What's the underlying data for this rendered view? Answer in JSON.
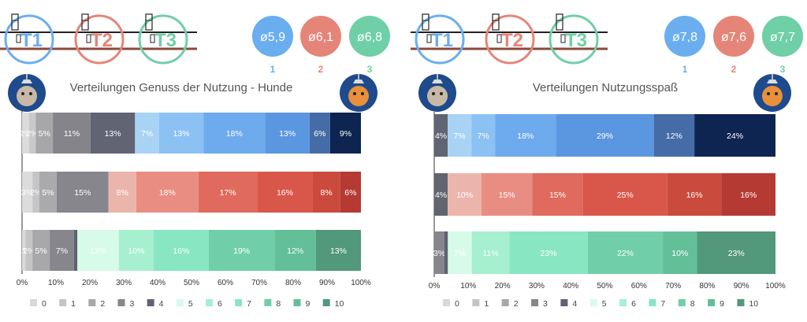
{
  "colors": {
    "0": "#d9d9d9",
    "1": "#c4c4c6",
    "2": "#a8a8aa",
    "3": "#86868c",
    "4": "#5f6270",
    "5": "#d6fbe9",
    "6": "#a6f0cf",
    "7": "#89e6c2",
    "8": "#70cfa8",
    "9": "#63bf98",
    "10": "#52987a",
    "t1": "#6aaef0",
    "t2": "#e58578",
    "t3": "#6fcfa7"
  },
  "icons": [
    "pylon-icon",
    "pylon-icon",
    "pylon-icon",
    "dog-avatar-icon",
    "dog-avatar-icon"
  ],
  "panels": [
    {
      "title": "Verteilungen Genuss der Nutzung - Hunde",
      "averages": [
        {
          "value": "ø5,9",
          "index": "1"
        },
        {
          "value": "ø6,1",
          "index": "2"
        },
        {
          "value": "ø6,8",
          "index": "3"
        }
      ],
      "track_labels": [
        "T1",
        "T2",
        "T3"
      ]
    },
    {
      "title": "Verteilungen Nutzungsspaß",
      "averages": [
        {
          "value": "ø7,8",
          "index": "1"
        },
        {
          "value": "ø7,6",
          "index": "2"
        },
        {
          "value": "ø7,7",
          "index": "3"
        }
      ],
      "track_labels": [
        "T1",
        "T2",
        "T3"
      ]
    }
  ],
  "chart_data": [
    {
      "type": "bar",
      "orientation": "horizontal-stacked-100",
      "title": "Verteilungen Genuss der Nutzung - Hunde",
      "categories": [
        "1",
        "2",
        "3"
      ],
      "legend": [
        "0",
        "1",
        "2",
        "3",
        "4",
        "5",
        "6",
        "7",
        "8",
        "9",
        "10"
      ],
      "legend_position": "bottom",
      "xticks": [
        "0%",
        "10%",
        "20%",
        "30%",
        "40%",
        "50%",
        "60%",
        "70%",
        "80%",
        "90%",
        "100%"
      ],
      "xlim": [
        0,
        100
      ],
      "rows": [
        {
          "values": [
            2,
            2,
            5,
            11,
            13,
            7,
            13,
            18,
            13,
            6,
            9
          ],
          "labels": [
            "2%",
            "2%",
            "5%",
            "11%",
            "13%",
            "7%",
            "13%",
            "18%",
            "13%",
            "6%",
            "9%"
          ]
        },
        {
          "values": [
            3,
            2,
            5,
            15,
            0,
            8,
            18,
            17,
            16,
            8,
            6
          ],
          "labels": [
            "3%",
            "2%",
            "5%",
            "15%",
            "",
            "8%",
            "18%",
            "17%",
            "16%",
            "8%",
            "6%"
          ]
        },
        {
          "values": [
            1,
            2,
            5,
            7,
            1,
            12,
            10,
            16,
            19,
            12,
            13
          ],
          "labels": [
            "1%",
            "2%",
            "5%",
            "7%",
            "",
            "12%",
            "10%",
            "16%",
            "19%",
            "12%",
            "13%"
          ]
        }
      ]
    },
    {
      "type": "bar",
      "orientation": "horizontal-stacked-100",
      "title": "Verteilungen Nutzungsspaß",
      "categories": [
        "1",
        "2",
        "3"
      ],
      "legend": [
        "0",
        "1",
        "2",
        "3",
        "4",
        "5",
        "6",
        "7",
        "8",
        "9",
        "10"
      ],
      "legend_position": "bottom",
      "xticks": [
        "0%",
        "10%",
        "20%",
        "30%",
        "40%",
        "50%",
        "60%",
        "70%",
        "80%",
        "90%",
        "100%"
      ],
      "xlim": [
        0,
        100
      ],
      "rows": [
        {
          "values": [
            0,
            0,
            0,
            0,
            4,
            7,
            7,
            18,
            29,
            12,
            24
          ],
          "labels": [
            "",
            "",
            "",
            "",
            "4%",
            "7%",
            "7%",
            "18%",
            "29%",
            "12%",
            "24%"
          ]
        },
        {
          "values": [
            0,
            0,
            0,
            0,
            4,
            10,
            15,
            15,
            25,
            16,
            16
          ],
          "labels": [
            "",
            "",
            "",
            "",
            "4%",
            "10%",
            "15%",
            "15%",
            "25%",
            "16%",
            "16%"
          ]
        },
        {
          "values": [
            0,
            0,
            0,
            3,
            1,
            7,
            11,
            23,
            22,
            10,
            23
          ],
          "labels": [
            "",
            "",
            "",
            "3%",
            "",
            "7%",
            "11%",
            "23%",
            "22%",
            "10%",
            "23%"
          ]
        }
      ]
    }
  ]
}
